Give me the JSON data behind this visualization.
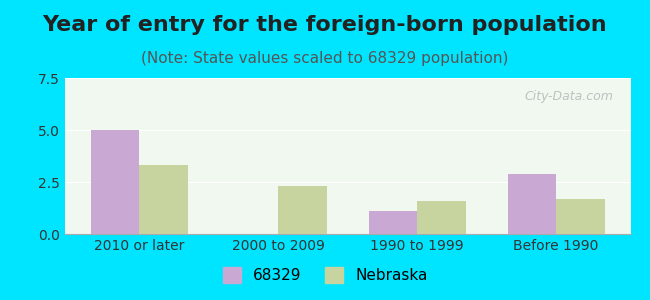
{
  "title": "Year of entry for the foreign-born population",
  "subtitle": "(Note: State values scaled to 68329 population)",
  "categories": [
    "2010 or later",
    "2000 to 2009",
    "1990 to 1999",
    "Before 1990"
  ],
  "values_68329": [
    5.0,
    0.0,
    1.1,
    2.9
  ],
  "values_nebraska": [
    3.3,
    2.3,
    1.6,
    1.7
  ],
  "color_68329": "#c9a8d4",
  "color_nebraska": "#c8d4a0",
  "ylim": [
    0,
    7.5
  ],
  "yticks": [
    0,
    2.5,
    5,
    7.5
  ],
  "background_outer": "#00e5ff",
  "background_inner": "#f0f8f0",
  "legend_label_68329": "68329",
  "legend_label_nebraska": "Nebraska",
  "bar_width": 0.35,
  "title_fontsize": 16,
  "subtitle_fontsize": 11
}
